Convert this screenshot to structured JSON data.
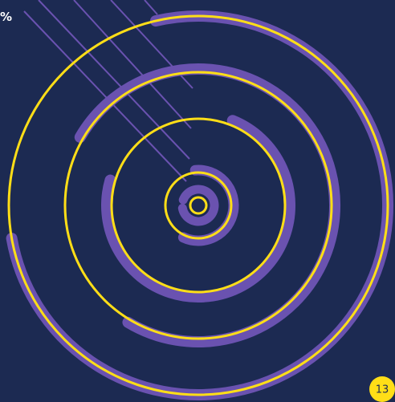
{
  "corner_label": "%",
  "page_number": "13"
}
